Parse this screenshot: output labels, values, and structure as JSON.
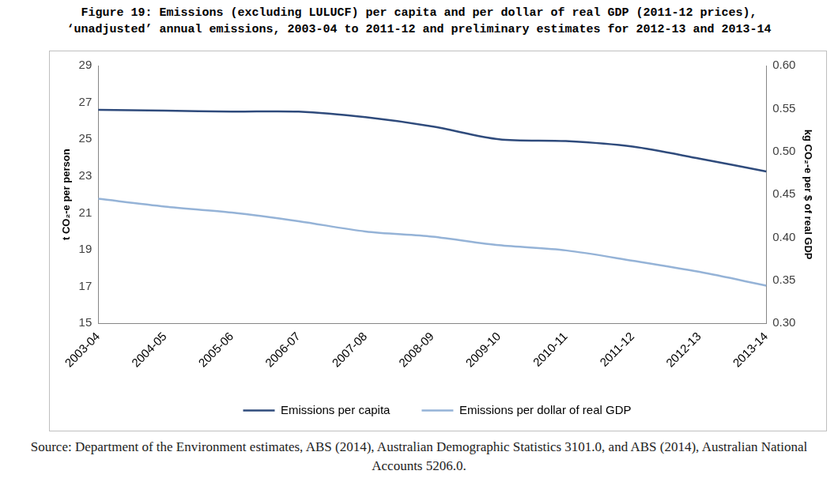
{
  "chart_data": {
    "type": "line",
    "title": [
      "Figure 19: Emissions (excluding LULUCF) per capita and per dollar of real GDP (2011-12 prices),",
      "‘unadjusted’ annual emissions, 2003-04 to 2011-12 and preliminary estimates for 2012-13 and 2013-14"
    ],
    "y_label": "t CO₂-e per person",
    "y2_label": "kg CO₂-e per $ of real GDP",
    "source": "Source: Department of the Environment estimates, ABS (2014), Australian Demographic Statistics 3101.0, and ABS (2014), Australian National Accounts 5206.0.",
    "categories": [
      "2003-04",
      "2004-05",
      "2005-06",
      "2006-07",
      "2007-08",
      "2008-09",
      "2009-10",
      "2010-11",
      "2011-12",
      "2012-13",
      "2013-14"
    ],
    "series": [
      {
        "name": "Emissions per capita",
        "color": "#2f4b7c",
        "axis": "y",
        "values": [
          26.6,
          26.55,
          26.5,
          26.5,
          26.2,
          25.7,
          25.0,
          24.9,
          24.6,
          23.95,
          23.25
        ]
      },
      {
        "name": "Emissions per dollar of real GDP",
        "color": "#95b3d7",
        "axis": "y2",
        "values": [
          0.445,
          0.436,
          0.429,
          0.419,
          0.407,
          0.401,
          0.391,
          0.385,
          0.373,
          0.36,
          0.344
        ]
      }
    ],
    "ylim": [
      15,
      29
    ],
    "yticks": [
      15,
      17,
      19,
      21,
      23,
      25,
      27,
      29
    ],
    "y2lim": [
      0.3,
      0.6
    ],
    "y2ticks": [
      {
        "value": 0.3,
        "label": "0.30"
      },
      {
        "value": 0.35,
        "label": "0.35"
      },
      {
        "value": 0.4,
        "label": "0.40"
      },
      {
        "value": 0.45,
        "label": "0.45"
      },
      {
        "value": 0.5,
        "label": "0.50"
      },
      {
        "value": 0.55,
        "label": "0.55"
      },
      {
        "value": 0.6,
        "label": "0.60"
      }
    ],
    "grid": false,
    "legend": "bottom"
  }
}
